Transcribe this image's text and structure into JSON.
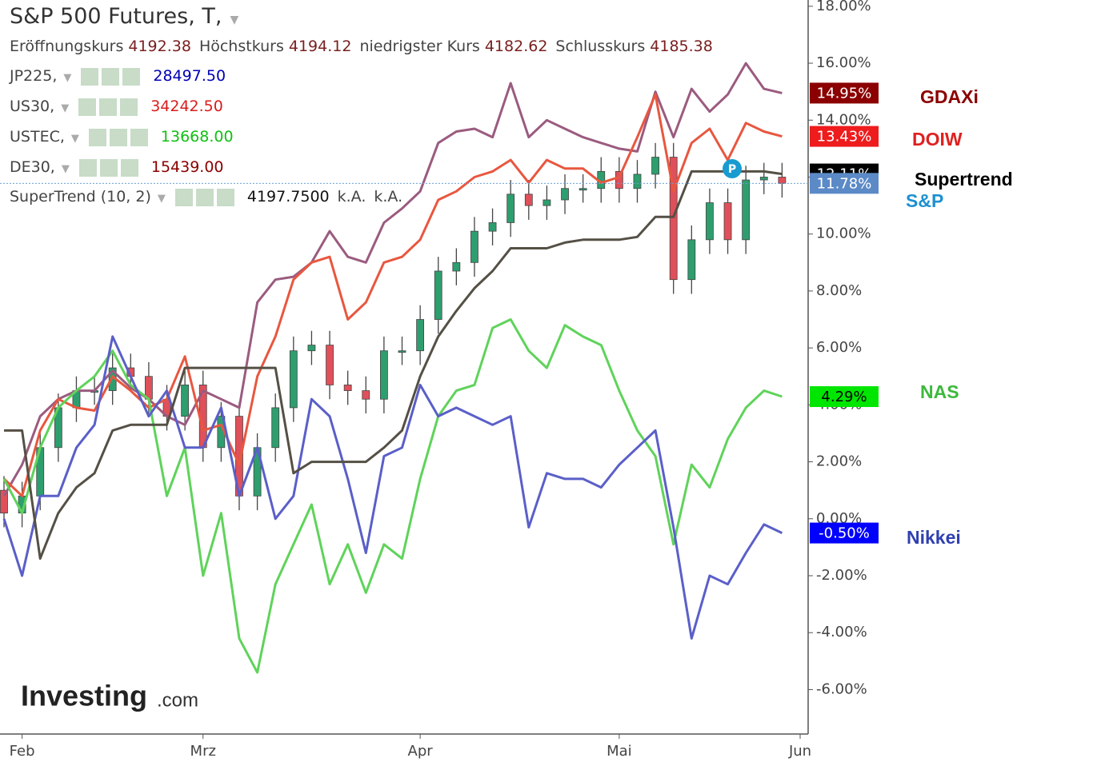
{
  "chart_data": {
    "type": "candlestick-overlay",
    "title": "S&P 500 Futures, T,",
    "ohlc": [
      {
        "label": "Eröffnungskurs",
        "value": "4192.38"
      },
      {
        "label": "Höchstkurs",
        "value": "4194.12"
      },
      {
        "label": "niedrigster Kurs",
        "value": "4182.62"
      },
      {
        "label": "Schlusskurs",
        "value": "4185.38"
      }
    ],
    "indicators": [
      {
        "name": "JP225,",
        "value": "28497.50",
        "color": "#0000b4"
      },
      {
        "name": "US30,",
        "value": "34242.50",
        "color": "#d81e1e"
      },
      {
        "name": "USTEC,",
        "value": "13668.00",
        "color": "#10c010"
      },
      {
        "name": "DE30,",
        "value": "15439.00",
        "color": "#8b0000"
      }
    ],
    "supertrend_row": {
      "name": "SuperTrend (10, 2)",
      "value": "4197.7500",
      "extra": [
        "k.A.",
        "k.A."
      ]
    },
    "logo": {
      "main": "Investing",
      "suffix": ".com"
    },
    "categories": [
      null,
      "Feb",
      null,
      null,
      null,
      null,
      null,
      null,
      null,
      null,
      null,
      "Mrz",
      null,
      null,
      null,
      null,
      null,
      null,
      null,
      null,
      null,
      null,
      null,
      "Apr",
      null,
      null,
      null,
      null,
      null,
      null,
      null,
      null,
      null,
      null,
      "Mai",
      null,
      null,
      null,
      null,
      null,
      null,
      null,
      null,
      null,
      "Jun"
    ],
    "ylim": [
      -7.56,
      18.22
    ],
    "yticks": [
      {
        "value": 18,
        "label": "18.00%"
      },
      {
        "value": 16,
        "label": "16.00%"
      },
      {
        "value": 14,
        "label": "14.00%"
      },
      {
        "value": 12,
        "label": "12.00%"
      },
      {
        "value": 10,
        "label": "10.00%"
      },
      {
        "value": 8,
        "label": "8.00%"
      },
      {
        "value": 6,
        "label": "6.00%"
      },
      {
        "value": 4,
        "label": "4.00%"
      },
      {
        "value": 2,
        "label": "2.00%"
      },
      {
        "value": 0,
        "label": "0.00%"
      },
      {
        "value": -2,
        "label": "-2.00%"
      },
      {
        "value": -4,
        "label": "-4.00%"
      },
      {
        "value": -6,
        "label": "-6.00%"
      }
    ],
    "candles": {
      "name": "S&P",
      "up_color": "#2e9e6e",
      "down_color": "#e0505a",
      "open": [
        1.0,
        0.2,
        0.8,
        2.5,
        3.9,
        4.5,
        4.5,
        5.3,
        5.0,
        4.2,
        3.6,
        4.7,
        2.5,
        3.6,
        0.8,
        2.5,
        3.9,
        5.9,
        6.1,
        4.7,
        4.5,
        4.2,
        5.9,
        5.9,
        7.0,
        8.7,
        9.0,
        10.1,
        10.4,
        11.4,
        11.0,
        11.2,
        11.6,
        11.6,
        12.2,
        11.6,
        12.1,
        12.7,
        8.4,
        9.8,
        11.1,
        9.8,
        11.9,
        12.0,
        null
      ],
      "high": [
        1.5,
        1.3,
        3.0,
        4.4,
        5.0,
        5.0,
        5.8,
        5.8,
        5.5,
        4.7,
        5.2,
        5.2,
        4.1,
        4.1,
        3.0,
        4.4,
        6.4,
        6.6,
        6.6,
        5.2,
        5.0,
        6.4,
        6.4,
        7.5,
        9.2,
        9.5,
        10.6,
        10.9,
        11.9,
        11.9,
        11.7,
        12.1,
        12.1,
        12.7,
        12.7,
        12.6,
        13.2,
        13.2,
        10.3,
        11.6,
        11.6,
        12.4,
        12.5,
        12.5,
        null
      ],
      "low": [
        -0.3,
        -0.3,
        0.3,
        2.0,
        3.4,
        4.0,
        4.0,
        4.5,
        3.7,
        3.1,
        3.1,
        2.0,
        2.0,
        0.3,
        0.3,
        2.0,
        3.4,
        5.4,
        4.2,
        4.0,
        3.7,
        3.7,
        5.4,
        5.4,
        6.5,
        8.2,
        8.5,
        9.6,
        9.9,
        10.5,
        10.5,
        10.7,
        11.1,
        11.1,
        11.1,
        11.1,
        11.6,
        7.9,
        7.9,
        9.3,
        9.3,
        9.3,
        11.4,
        11.28,
        null
      ],
      "close": [
        0.2,
        0.8,
        2.5,
        3.9,
        4.5,
        4.5,
        5.3,
        5.0,
        4.2,
        3.6,
        4.7,
        2.5,
        3.6,
        0.8,
        2.5,
        3.9,
        5.9,
        6.1,
        4.7,
        4.5,
        4.2,
        5.9,
        5.9,
        7.0,
        8.7,
        9.0,
        10.1,
        10.4,
        11.4,
        11.0,
        11.2,
        11.6,
        11.6,
        12.2,
        11.6,
        12.1,
        12.7,
        8.4,
        9.8,
        11.1,
        9.8,
        11.9,
        12.0,
        11.78,
        null
      ]
    },
    "series": [
      {
        "name": "GDAXi",
        "color": "#9b5b7f",
        "values": [
          0.8,
          1.9,
          3.6,
          4.2,
          4.5,
          4.5,
          5.2,
          4.6,
          4.2,
          3.6,
          3.3,
          4.5,
          4.2,
          3.9,
          7.6,
          8.4,
          8.5,
          9.0,
          10.1,
          9.2,
          9.0,
          10.4,
          10.9,
          11.5,
          13.2,
          13.6,
          13.7,
          13.4,
          15.3,
          13.4,
          14.0,
          13.7,
          13.4,
          13.2,
          13.0,
          12.9,
          15.0,
          13.4,
          15.1,
          14.3,
          14.9,
          16.0,
          15.1,
          14.95,
          null
        ]
      },
      {
        "name": "DOIW",
        "color": "#e8573f",
        "values": [
          1.4,
          0.8,
          3.1,
          4.2,
          3.9,
          3.8,
          5.0,
          4.5,
          3.9,
          4.2,
          5.7,
          3.1,
          3.3,
          1.9,
          5.0,
          6.4,
          8.4,
          9.0,
          9.2,
          7.0,
          7.6,
          9.0,
          9.2,
          9.8,
          11.2,
          11.5,
          12.0,
          12.2,
          12.6,
          11.8,
          12.6,
          12.3,
          12.3,
          11.8,
          12.0,
          13.4,
          14.9,
          11.5,
          13.2,
          13.7,
          12.6,
          13.9,
          13.6,
          13.43,
          null
        ]
      },
      {
        "name": "NAS",
        "color": "#5fd35a",
        "values": [
          1.4,
          0.2,
          2.5,
          3.9,
          4.5,
          5.0,
          5.9,
          4.7,
          4.2,
          0.8,
          2.5,
          -2.0,
          0.2,
          -4.2,
          -5.4,
          -2.3,
          -0.9,
          0.5,
          -2.3,
          -0.9,
          -2.6,
          -0.9,
          -1.4,
          1.4,
          3.6,
          4.5,
          4.7,
          6.7,
          7.0,
          5.9,
          5.3,
          6.8,
          6.4,
          6.1,
          4.5,
          3.1,
          2.2,
          -0.9,
          1.9,
          1.1,
          2.8,
          3.9,
          4.5,
          4.29,
          null
        ]
      },
      {
        "name": "Nikkei",
        "color": "#5a5fc8",
        "values": [
          0.0,
          -2.0,
          0.8,
          0.8,
          2.5,
          3.3,
          6.4,
          5.0,
          3.6,
          4.5,
          2.5,
          2.5,
          3.9,
          0.8,
          2.5,
          0.0,
          0.8,
          4.2,
          3.6,
          1.4,
          -1.2,
          2.2,
          2.5,
          4.7,
          3.6,
          3.9,
          3.6,
          3.3,
          3.6,
          -0.3,
          1.6,
          1.4,
          1.4,
          1.1,
          1.9,
          2.5,
          3.1,
          -0.3,
          -4.2,
          -2.0,
          -2.3,
          -1.2,
          -0.2,
          -0.5,
          null
        ]
      },
      {
        "name": "Supertrend",
        "color": "#555045",
        "values": [
          3.1,
          3.1,
          -1.4,
          0.2,
          1.1,
          1.6,
          3.1,
          3.3,
          3.3,
          3.3,
          5.3,
          5.3,
          5.3,
          5.3,
          5.3,
          5.3,
          1.6,
          2.0,
          2.0,
          2.0,
          2.0,
          2.5,
          3.1,
          5.0,
          6.4,
          7.3,
          8.1,
          8.7,
          9.5,
          9.5,
          9.5,
          9.7,
          9.8,
          9.8,
          9.8,
          9.9,
          10.6,
          10.6,
          12.2,
          12.2,
          12.2,
          12.2,
          12.2,
          12.11,
          null
        ]
      }
    ],
    "price_labels": [
      {
        "value": 14.95,
        "label": "14.95%",
        "color": "#8b0000",
        "text_color": "#ffffff",
        "annotation": "GDAXi",
        "annotation_color": "#8b0000"
      },
      {
        "value": 13.43,
        "label": "13.43%",
        "color": "#ee1c1c",
        "text_color": "#ffffff",
        "annotation": "DOIW",
        "annotation_color": "#e02020"
      },
      {
        "value": 12.11,
        "label": "12.11%",
        "color": "#000000",
        "text_color": "#ffffff",
        "annotation": "Supertrend",
        "annotation_color": "#000000"
      },
      {
        "value": 11.78,
        "label": "11.78%",
        "color": "#5b8ac7",
        "text_color": "#ffffff",
        "annotation": "S&P",
        "annotation_color": "#1e90d0"
      },
      {
        "value": 4.29,
        "label": "4.29%",
        "color": "#00e600",
        "text_color": "#000000",
        "annotation": "NAS",
        "annotation_color": "#3cb93c"
      },
      {
        "value": -0.5,
        "label": "-0.50%",
        "color": "#0000ff",
        "text_color": "#ffffff",
        "annotation": "Nikkei",
        "annotation_color": "#3040b0"
      }
    ]
  }
}
